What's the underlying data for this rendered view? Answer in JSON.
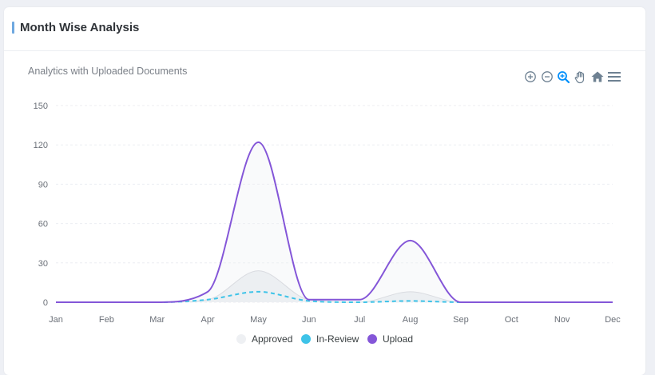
{
  "card": {
    "title": "Month Wise Analysis"
  },
  "toolbar": {
    "icons": [
      "zoom-in-icon",
      "zoom-out-icon",
      "selection-zoom-icon",
      "pan-hand-icon",
      "reset-home-icon",
      "menu-icon"
    ]
  },
  "colors": {
    "approved": "#d9dbe0",
    "in_review": "#3ec3e8",
    "upload": "#8456d8",
    "grid": "#eceef2",
    "toolbar_icon": "#6e8192",
    "toolbar_active": "#008ffb"
  },
  "chart_data": {
    "type": "area",
    "title": "Analytics with Uploaded Documents",
    "categories": [
      "Jan",
      "Feb",
      "Mar",
      "Apr",
      "May",
      "Jun",
      "Jul",
      "Aug",
      "Sep",
      "Oct",
      "Nov",
      "Dec"
    ],
    "series": [
      {
        "name": "Approved",
        "values": [
          0,
          0,
          0,
          2,
          24,
          2,
          0,
          8,
          0,
          0,
          0,
          0
        ]
      },
      {
        "name": "In-Review",
        "values": [
          0,
          0,
          0,
          2,
          8,
          1,
          0,
          1,
          0,
          0,
          0,
          0
        ]
      },
      {
        "name": "Upload",
        "values": [
          0,
          0,
          0,
          8,
          122,
          2,
          2,
          47,
          0,
          0,
          0,
          0
        ]
      }
    ],
    "ylim": [
      0,
      150
    ],
    "yticks": [
      0,
      30,
      60,
      90,
      120,
      150
    ],
    "grid": true,
    "legend": "bottom"
  }
}
